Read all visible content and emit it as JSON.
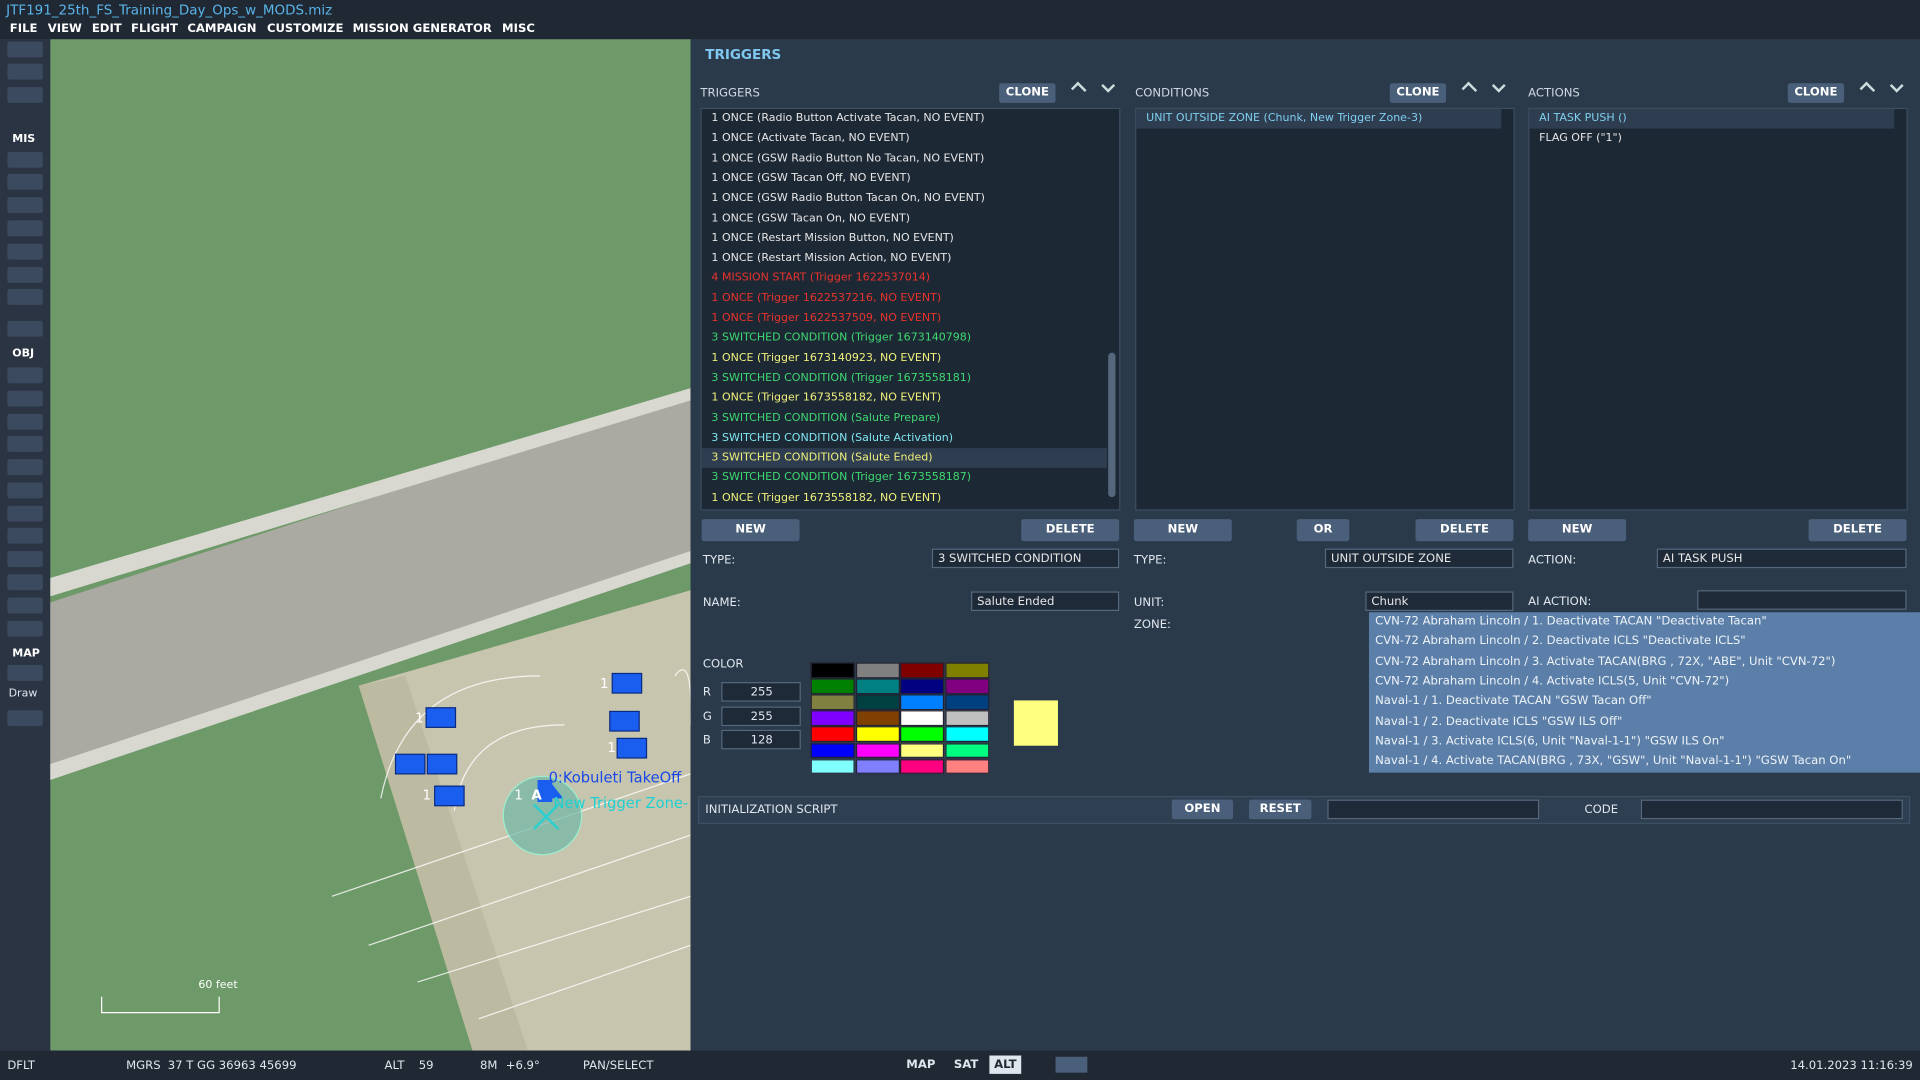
{
  "title": "JTF191_25th_FS_Training_Day_Ops_w_MODS.miz",
  "menu": [
    "FILE",
    "VIEW",
    "EDIT",
    "FLIGHT",
    "CAMPAIGN",
    "CUSTOMIZE",
    "MISSION GENERATOR",
    "MISC"
  ],
  "toolbar": {
    "sections": [
      "MIS",
      "OBJ",
      "MAP"
    ],
    "draw": "Draw"
  },
  "map": {
    "unit_labels": [
      "1",
      "1",
      "1",
      "1",
      "1"
    ],
    "waypoint": "A",
    "takeoff": "0:Kobuleti TakeOff",
    "zone": "New Trigger Zone-",
    "scale": "60 feet"
  },
  "panel": {
    "title": "TRIGGERS",
    "triggers": {
      "header": "TRIGGERS",
      "clone": "CLONE",
      "selected": 17,
      "new": "NEW",
      "delete": "DELETE",
      "items": [
        {
          "text": "1 ONCE (Radio Button Activate Tacan, NO EVENT)",
          "color": "#e6e6e6"
        },
        {
          "text": "1 ONCE (Activate Tacan, NO EVENT)",
          "color": "#e6e6e6"
        },
        {
          "text": "1 ONCE (GSW Radio Button No Tacan, NO EVENT)",
          "color": "#e6e6e6"
        },
        {
          "text": "1 ONCE (GSW Tacan Off, NO EVENT)",
          "color": "#e6e6e6"
        },
        {
          "text": "1 ONCE (GSW Radio Button Tacan On, NO EVENT)",
          "color": "#e6e6e6"
        },
        {
          "text": "1 ONCE (GSW Tacan On, NO EVENT)",
          "color": "#e6e6e6"
        },
        {
          "text": "1 ONCE (Restart Mission Button, NO EVENT)",
          "color": "#e6e6e6"
        },
        {
          "text": "1 ONCE (Restart Mission Action, NO EVENT)",
          "color": "#e6e6e6"
        },
        {
          "text": "4 MISSION START (Trigger 1622537014)",
          "color": "#e8332c"
        },
        {
          "text": "1 ONCE (Trigger 1622537216, NO EVENT)",
          "color": "#e8332c"
        },
        {
          "text": "1 ONCE (Trigger 1622537509, NO EVENT)",
          "color": "#e8332c"
        },
        {
          "text": "3 SWITCHED CONDITION (Trigger 1673140798)",
          "color": "#3fd870"
        },
        {
          "text": "1 ONCE (Trigger 1673140923, NO EVENT)",
          "color": "#f0f07a"
        },
        {
          "text": "3 SWITCHED CONDITION (Trigger 1673558181)",
          "color": "#3fd870"
        },
        {
          "text": "1 ONCE (Trigger 1673558182, NO EVENT)",
          "color": "#f0f07a"
        },
        {
          "text": "3 SWITCHED CONDITION (Salute Prepare)",
          "color": "#3fd870"
        },
        {
          "text": "3 SWITCHED CONDITION (Salute Activation)",
          "color": "#7fe6f0"
        },
        {
          "text": "3 SWITCHED CONDITION (Salute Ended)",
          "color": "#f0f07a"
        },
        {
          "text": "3 SWITCHED CONDITION (Trigger 1673558187)",
          "color": "#3fd870"
        },
        {
          "text": "1 ONCE (Trigger 1673558182, NO EVENT)",
          "color": "#f0f07a"
        }
      ],
      "type_label": "TYPE:",
      "type_value": "3 SWITCHED CONDITION",
      "name_label": "NAME:",
      "name_value": "Salute Ended",
      "color_label": "COLOR",
      "channels": [
        {
          "label": "R",
          "value": "255"
        },
        {
          "label": "G",
          "value": "255"
        },
        {
          "label": "B",
          "value": "128"
        }
      ],
      "preview": "#ffff80",
      "palette": [
        "#000000",
        "#808080",
        "#800000",
        "#808000",
        "#008000",
        "#008080",
        "#000080",
        "#800080",
        "#808040",
        "#004040",
        "#0080ff",
        "#004080",
        "#8000ff",
        "#804000",
        "#ffffff",
        "#c0c0c0",
        "#ff0000",
        "#ffff00",
        "#00ff00",
        "#00ffff",
        "#0000ff",
        "#ff00ff",
        "#ffff80",
        "#00ff80",
        "#80ffff",
        "#8080ff",
        "#ff0080",
        "#ff8080"
      ]
    },
    "conditions": {
      "header": "CONDITIONS",
      "clone": "CLONE",
      "selected": 0,
      "new": "NEW",
      "or": "OR",
      "delete": "DELETE",
      "items": [
        {
          "text": "UNIT OUTSIDE ZONE (Chunk, New Trigger Zone-3)",
          "color": "#7fd0f0"
        }
      ],
      "type_label": "TYPE:",
      "type_value": "UNIT OUTSIDE ZONE",
      "unit_label": "UNIT:",
      "unit_value": "Chunk",
      "zone_label": "ZONE:"
    },
    "actions": {
      "header": "ACTIONS",
      "clone": "CLONE",
      "selected": 0,
      "new": "NEW",
      "delete": "DELETE",
      "items": [
        {
          "text": "AI TASK PUSH ()",
          "color": "#7fd0f0"
        },
        {
          "text": "FLAG OFF (\"1\")",
          "color": "#e6e6e6"
        }
      ],
      "action_label": "ACTION:",
      "action_value": "AI TASK PUSH",
      "ai_action_label": "AI ACTION:",
      "options": [
        "CVN-72 Abraham Lincoln / 1. Deactivate TACAN \"Deactivate Tacan\"",
        "CVN-72 Abraham Lincoln / 2. Deactivate ICLS \"Deactivate ICLS\"",
        "CVN-72 Abraham Lincoln / 3. Activate TACAN(BRG , 72X, \"ABE\", Unit \"CVN-72\")",
        "CVN-72 Abraham Lincoln / 4. Activate ICLS(5, Unit \"CVN-72\")",
        "Naval-1 / 1. Deactivate TACAN \"GSW Tacan Off\"",
        "Naval-1 / 2. Deactivate ICLS \"GSW ILS Off\"",
        "Naval-1 / 3. Activate ICLS(6, Unit \"Naval-1-1\")  \"GSW ILS On\"",
        "Naval-1 / 4. Activate TACAN(BRG , 73X, \"GSW\", Unit \"Naval-1-1\")  \"GSW Tacan On\""
      ]
    },
    "init": {
      "label": "INITIALIZATION SCRIPT",
      "open": "OPEN",
      "reset": "RESET",
      "code": "CODE"
    }
  },
  "status": {
    "profile": "DFLT",
    "coord_label": "MGRS",
    "coord": "37 T GG 36963 45699",
    "alt_label": "ALT",
    "alt": "59",
    "wind": "8M",
    "temp": "+6.9°",
    "mode": "PAN/SELECT",
    "layers": [
      "MAP",
      "SAT",
      "ALT"
    ],
    "active_layer": 2,
    "datetime": "14.01.2023 11:16:39"
  }
}
